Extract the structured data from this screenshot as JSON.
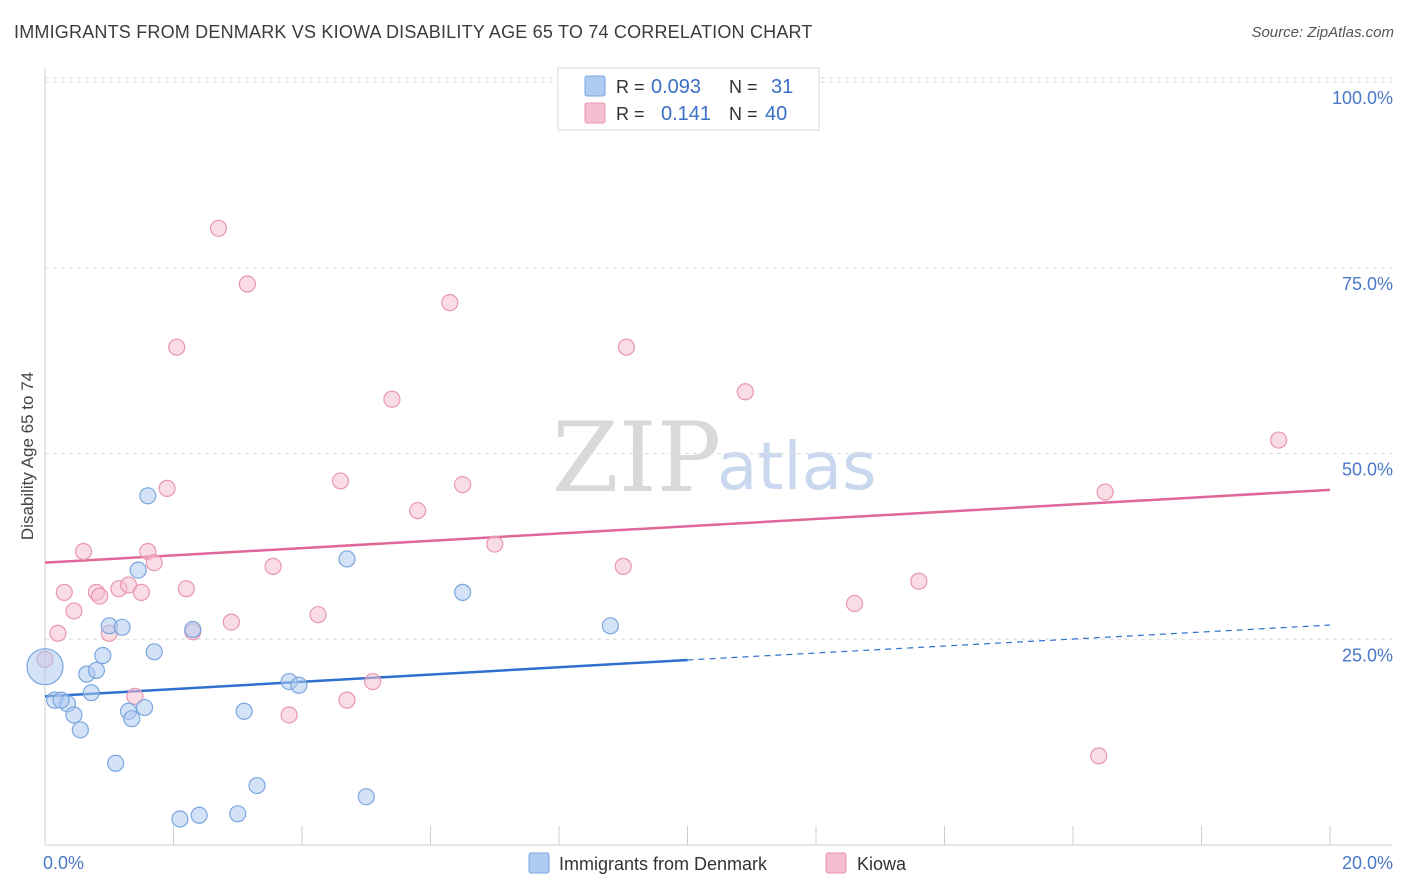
{
  "title": "IMMIGRANTS FROM DENMARK VS KIOWA DISABILITY AGE 65 TO 74 CORRELATION CHART",
  "source": "Source: ZipAtlas.com",
  "watermark": {
    "zip": "ZIP",
    "atlas": "atlas"
  },
  "colors": {
    "blue_fill": "#aecbf0",
    "blue_stroke": "#7aa6de",
    "blue_line": "#2f6fcf",
    "pink_fill": "#f6bfd0",
    "pink_stroke": "#e896b1",
    "pink_line": "#e0679a",
    "grid": "#dddddd",
    "tick_text": "#4a78c8"
  },
  "legend": {
    "rows": [
      {
        "r_label": "R =",
        "r_value": "0.093",
        "n_label": "N =",
        "n_value": "31"
      },
      {
        "r_label": "R =",
        "r_value": "0.141",
        "n_label": "N =",
        "n_value": "40"
      }
    ]
  },
  "bottom_legend": [
    "Immigrants from Denmark",
    "Kiowa"
  ],
  "chart_data": {
    "type": "scatter",
    "xlabel": "",
    "ylabel": "Disability Age 65 to 74",
    "xlim": [
      0,
      20
    ],
    "ylim": [
      0,
      100
    ],
    "x_tick_labels": [
      "0.0%",
      "20.0%"
    ],
    "y_tick_labels": [
      "100.0%",
      "75.0%",
      "50.0%",
      "25.0%"
    ],
    "y_ticks": [
      100,
      75,
      50,
      25
    ],
    "grid": true,
    "legend_position": "top-center",
    "series": [
      {
        "name": "Immigrants from Denmark",
        "color": "#aecbf0",
        "trend": {
          "x0": 0,
          "y0": 20.0,
          "x1": 10,
          "y1": 24.9,
          "x1_dashed": 20,
          "y1_dashed": 29.6
        },
        "points": [
          [
            0.0,
            24.0
          ],
          [
            0.15,
            19.5
          ],
          [
            0.35,
            19.0
          ],
          [
            0.45,
            17.5
          ],
          [
            0.55,
            15.5
          ],
          [
            0.65,
            23.0
          ],
          [
            0.72,
            20.5
          ],
          [
            0.8,
            23.5
          ],
          [
            0.9,
            25.5
          ],
          [
            1.0,
            29.5
          ],
          [
            1.1,
            11.0
          ],
          [
            1.2,
            29.3
          ],
          [
            1.3,
            18.0
          ],
          [
            1.35,
            17.0
          ],
          [
            1.45,
            37.0
          ],
          [
            1.55,
            18.5
          ],
          [
            1.6,
            47.0
          ],
          [
            1.7,
            26.0
          ],
          [
            2.1,
            3.5
          ],
          [
            2.3,
            29.0
          ],
          [
            2.4,
            4.0
          ],
          [
            3.0,
            4.2
          ],
          [
            3.1,
            18.0
          ],
          [
            3.3,
            8.0
          ],
          [
            3.8,
            22.0
          ],
          [
            3.95,
            21.5
          ],
          [
            4.7,
            38.5
          ],
          [
            5.0,
            6.5
          ],
          [
            6.5,
            34.0
          ],
          [
            8.8,
            29.5
          ],
          [
            0.25,
            19.5
          ]
        ]
      },
      {
        "name": "Kiowa",
        "color": "#f6bfd0",
        "trend": {
          "x0": 0,
          "y0": 38.0,
          "x1": 20,
          "y1": 47.8
        },
        "points": [
          [
            0.0,
            25.0
          ],
          [
            0.2,
            28.5
          ],
          [
            0.3,
            34.0
          ],
          [
            0.45,
            31.5
          ],
          [
            0.6,
            39.5
          ],
          [
            0.8,
            34.0
          ],
          [
            0.85,
            33.5
          ],
          [
            1.0,
            28.5
          ],
          [
            1.15,
            34.5
          ],
          [
            1.3,
            35.0
          ],
          [
            1.4,
            20.0
          ],
          [
            1.5,
            34.0
          ],
          [
            1.6,
            39.5
          ],
          [
            1.7,
            38.0
          ],
          [
            1.9,
            48.0
          ],
          [
            2.05,
            67.0
          ],
          [
            2.2,
            34.5
          ],
          [
            2.3,
            28.7
          ],
          [
            2.7,
            83.0
          ],
          [
            2.9,
            30.0
          ],
          [
            3.15,
            75.5
          ],
          [
            3.55,
            37.5
          ],
          [
            3.8,
            17.5
          ],
          [
            4.25,
            31.0
          ],
          [
            4.6,
            49.0
          ],
          [
            4.7,
            19.5
          ],
          [
            5.1,
            22.0
          ],
          [
            5.4,
            60.0
          ],
          [
            5.8,
            45.0
          ],
          [
            6.3,
            73.0
          ],
          [
            6.5,
            48.5
          ],
          [
            7.0,
            40.5
          ],
          [
            9.0,
            37.5
          ],
          [
            9.05,
            67.0
          ],
          [
            10.9,
            61.0
          ],
          [
            12.6,
            32.5
          ],
          [
            13.6,
            35.5
          ],
          [
            16.4,
            12.0
          ],
          [
            16.5,
            47.5
          ],
          [
            19.2,
            54.5
          ]
        ]
      }
    ]
  }
}
